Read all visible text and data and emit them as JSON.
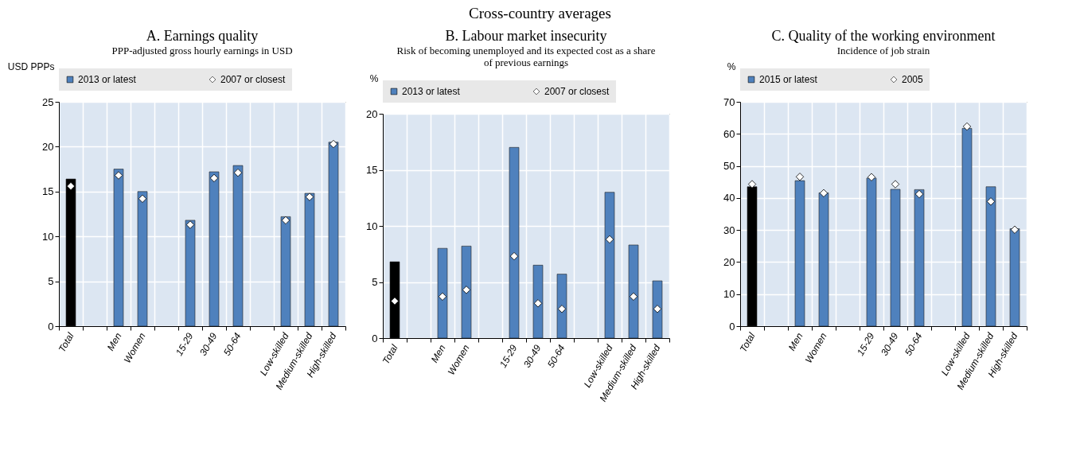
{
  "chart_data": [
    {
      "type": "bar",
      "title": "A. Earnings quality",
      "subtitle": "PPP-adjusted gross hourly earnings in USD",
      "ylabel": "USD PPPs",
      "annotations": [
        "Cross-country averages"
      ],
      "categories": [
        "Total",
        null,
        "Men",
        "Women",
        null,
        "15-29",
        "30-49",
        "50-64",
        null,
        "Low-skilled",
        "Medium-skilled",
        "High-skilled"
      ],
      "series": [
        {
          "name": "2013 or latest",
          "color": "#4f81bd",
          "colors": [
            "#000000",
            null,
            "#4f81bd",
            "#4f81bd",
            null,
            "#4f81bd",
            "#4f81bd",
            "#4f81bd",
            null,
            "#4f81bd",
            "#4f81bd",
            "#4f81bd"
          ],
          "values": [
            16.4,
            null,
            17.5,
            15.0,
            null,
            11.8,
            17.2,
            17.9,
            null,
            12.2,
            14.8,
            20.5
          ]
        },
        {
          "type": "scatter",
          "name": "2007 or closest",
          "color": "#ffffff",
          "marker": "diamond",
          "values": [
            15.6,
            null,
            16.8,
            14.2,
            null,
            11.3,
            16.5,
            17.1,
            null,
            11.8,
            14.4,
            20.3
          ]
        }
      ],
      "ylim": [
        0,
        25
      ],
      "yticks": [
        0,
        5,
        10,
        15,
        20,
        25
      ],
      "grid": true,
      "legend": "top"
    },
    {
      "type": "bar",
      "title": "B. Labour market insecurity",
      "subtitle": "Risk of becoming unemployed and its expected cost as a share of previous earnings",
      "ylabel": "%",
      "categories": [
        "Total",
        null,
        "Men",
        "Women",
        null,
        "15-29",
        "30-49",
        "50-64",
        null,
        "Low-skilled",
        "Medium-skilled",
        "High-skilled"
      ],
      "series": [
        {
          "name": "2013 or latest",
          "color": "#4f81bd",
          "colors": [
            "#000000",
            null,
            "#4f81bd",
            "#4f81bd",
            null,
            "#4f81bd",
            "#4f81bd",
            "#4f81bd",
            null,
            "#4f81bd",
            "#4f81bd",
            "#4f81bd"
          ],
          "values": [
            6.8,
            null,
            8.0,
            8.2,
            null,
            17.0,
            6.5,
            5.7,
            null,
            13.0,
            8.3,
            5.1
          ]
        },
        {
          "type": "scatter",
          "name": "2007 or closest",
          "color": "#ffffff",
          "marker": "diamond",
          "values": [
            3.3,
            null,
            3.7,
            4.3,
            null,
            7.3,
            3.1,
            2.6,
            null,
            8.8,
            3.7,
            2.6
          ]
        }
      ],
      "ylim": [
        0,
        20
      ],
      "yticks": [
        0,
        5,
        10,
        15,
        20
      ],
      "grid": true,
      "legend": "top"
    },
    {
      "type": "bar",
      "title": "C. Quality of the working environment",
      "subtitle": "Incidence of job strain",
      "ylabel": "%",
      "categories": [
        "Total",
        null,
        "Men",
        "Women",
        null,
        "15-29",
        "30-49",
        "50-64",
        null,
        "Low-skilled",
        "Medium-skilled",
        "High-skilled"
      ],
      "series": [
        {
          "name": "2015 or latest",
          "color": "#4f81bd",
          "colors": [
            "#000000",
            null,
            "#4f81bd",
            "#4f81bd",
            null,
            "#4f81bd",
            "#4f81bd",
            "#4f81bd",
            null,
            "#4f81bd",
            "#4f81bd",
            "#4f81bd"
          ],
          "values": [
            43.5,
            null,
            45.4,
            41.6,
            null,
            46.2,
            42.7,
            42.6,
            null,
            61.7,
            43.5,
            30.4
          ]
        },
        {
          "type": "scatter",
          "name": "2005",
          "color": "#ffffff",
          "marker": "diamond",
          "values": [
            44.3,
            null,
            46.6,
            41.5,
            null,
            46.5,
            44.3,
            41.2,
            null,
            62.3,
            38.9,
            30.1
          ]
        }
      ],
      "ylim": [
        0,
        70
      ],
      "yticks": [
        0,
        10,
        20,
        30,
        40,
        50,
        60,
        70
      ],
      "grid": true,
      "legend": "top"
    }
  ]
}
